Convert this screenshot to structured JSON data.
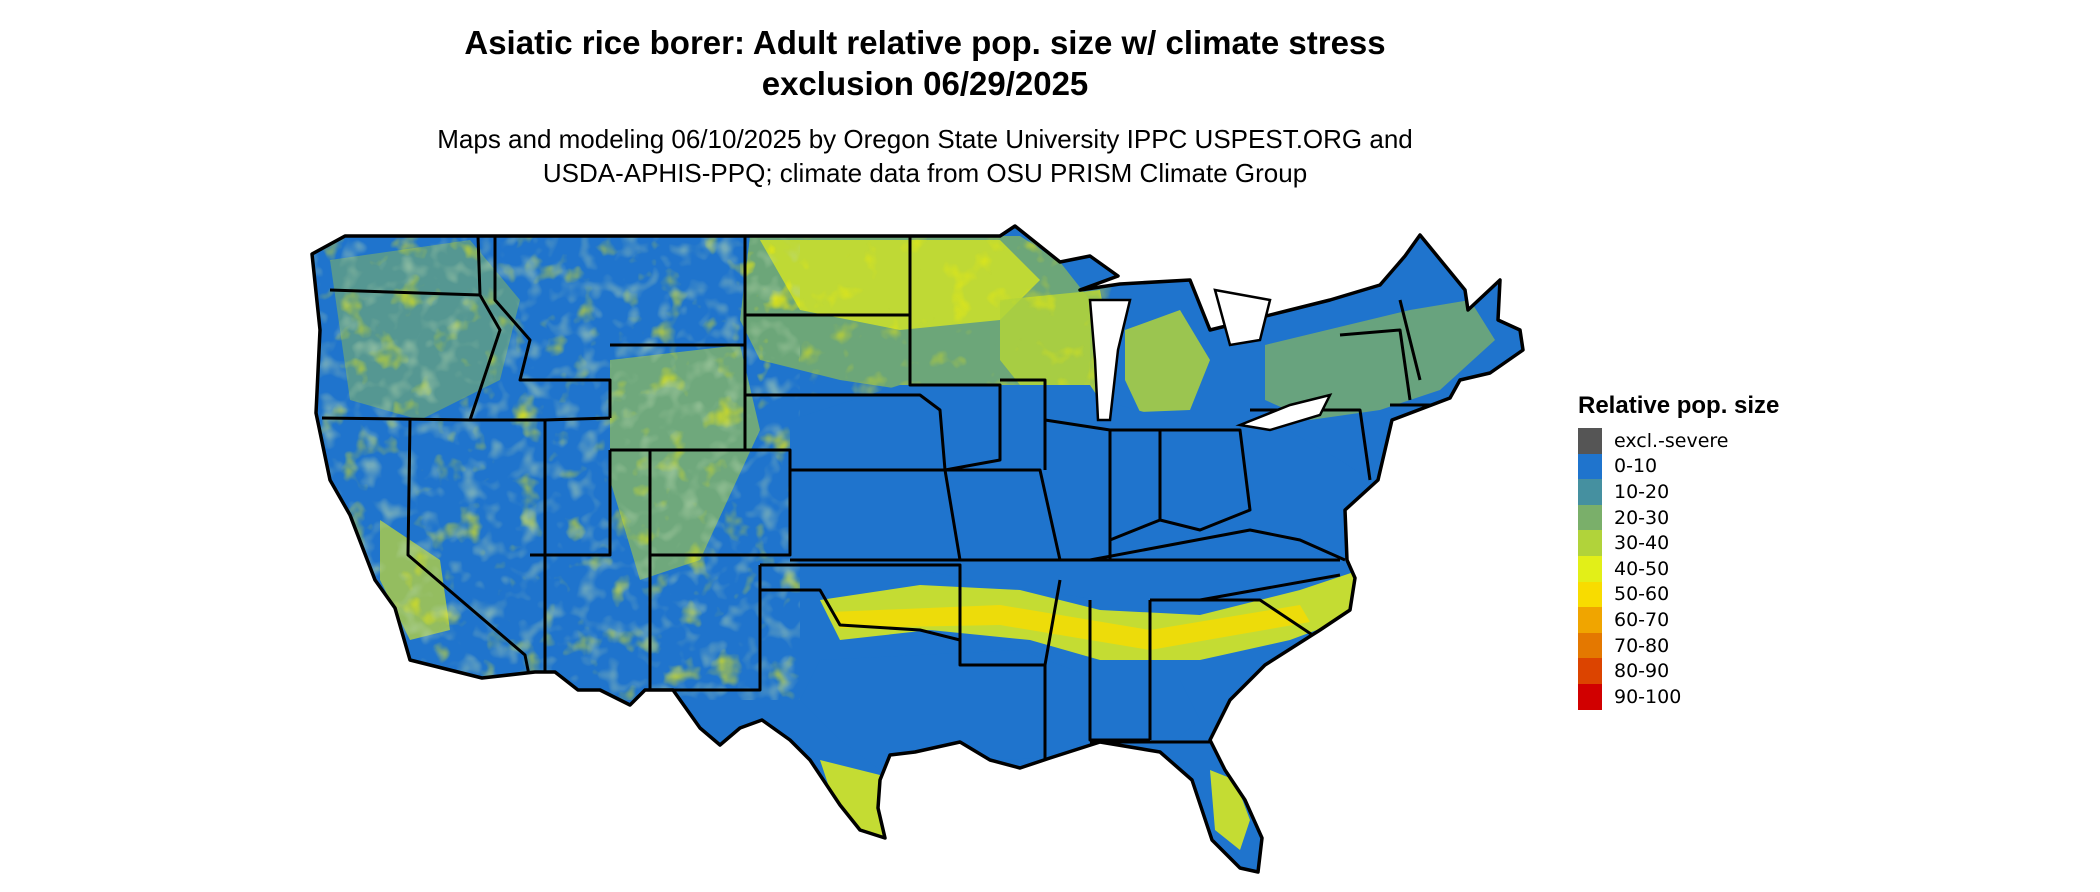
{
  "title": {
    "line1": "Asiatic rice borer: Adult relative pop. size w/ climate stress",
    "line2": "exclusion 06/29/2025"
  },
  "subtitle": {
    "line1": "Maps and modeling 06/10/2025 by Oregon State University IPPC USPEST.ORG and",
    "line2": "USDA-APHIS-PPQ; climate data from OSU PRISM Climate Group"
  },
  "legend": {
    "title": "Relative pop. size",
    "items": [
      {
        "label": "excl.-severe",
        "color": "#555555"
      },
      {
        "label": "0-10",
        "color": "#1f74cd"
      },
      {
        "label": "10-20",
        "color": "#4590a0"
      },
      {
        "label": "20-30",
        "color": "#7aaf6a"
      },
      {
        "label": "30-40",
        "color": "#b1d33a"
      },
      {
        "label": "40-50",
        "color": "#e2ef18"
      },
      {
        "label": "50-60",
        "color": "#f8dc00"
      },
      {
        "label": "60-70",
        "color": "#f0a500"
      },
      {
        "label": "70-80",
        "color": "#e47800"
      },
      {
        "label": "80-90",
        "color": "#dc4400"
      },
      {
        "label": "90-100",
        "color": "#d10000"
      }
    ]
  },
  "map": {
    "region": "contiguous-united-states",
    "base_color": "#1f74cd",
    "border_color": "#000000"
  }
}
